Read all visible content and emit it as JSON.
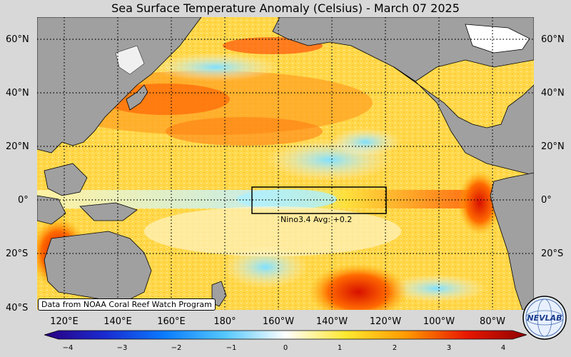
{
  "title": "Sea Surface Temperature Anomaly (Celsius) - March 07 2025",
  "lat_labels": [
    "60°N",
    "40°N",
    "20°N",
    "0°",
    "20°S",
    "40°S"
  ],
  "lon_labels": [
    "120°E",
    "140°E",
    "160°E",
    "180°",
    "160°W",
    "140°W",
    "120°W",
    "100°W",
    "80°W"
  ],
  "nino_box": {
    "label": "Nino3.4 Avg: +0.2"
  },
  "credit": "Data from NOAA Coral Reef Watch Program",
  "colorbar": {
    "ticks": [
      "−4",
      "−3",
      "−2",
      "−1",
      "0",
      "1",
      "2",
      "3",
      "4"
    ],
    "colors": [
      "#2a0080",
      "#1a2ad0",
      "#0a7cff",
      "#55c8ff",
      "#ffffff",
      "#ffe830",
      "#ff9a00",
      "#e81800",
      "#900000"
    ]
  },
  "logo": {
    "text": "NEVLAB"
  },
  "colors": {
    "land": "#a0a0a0",
    "ocean_base": "#ffd84a",
    "warm": "#ff6a00",
    "cool": "#8fe6ff"
  }
}
